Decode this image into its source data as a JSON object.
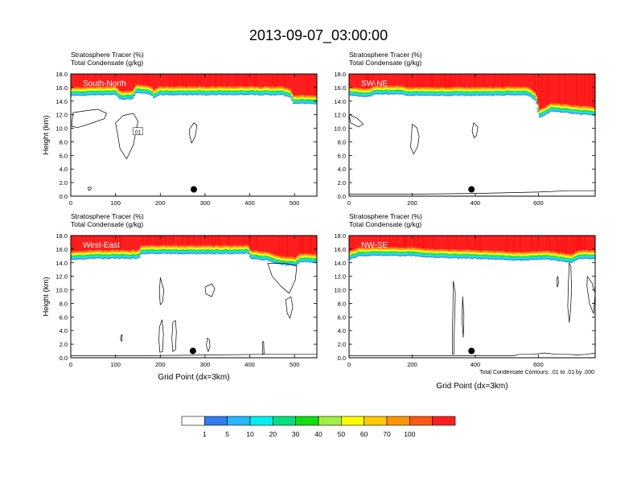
{
  "title": "2013-09-07_03:00:00",
  "footnote": "Total Condensate Contours: .01 to .01 by .000",
  "colorbar": {
    "colors": [
      "#ffffff",
      "#2f7ef0",
      "#27b8ff",
      "#00f0f0",
      "#00e080",
      "#10e010",
      "#a0f040",
      "#ffff00",
      "#ffc800",
      "#ff9600",
      "#ff5a14",
      "#ff1e1e"
    ],
    "labels": [
      "1",
      "5",
      "10",
      "20",
      "30",
      "40",
      "50",
      "60",
      "70",
      "100"
    ]
  },
  "chart_data": [
    {
      "type": "heatmap",
      "name": "South-North",
      "title_lines": [
        "Stratosphere Tracer   (%)",
        "Total Condensate   (g/kg)"
      ],
      "ylabel": "Height (km)",
      "xlabel": "",
      "xlim": [
        0,
        550
      ],
      "ylim": [
        0,
        18
      ],
      "x_ticks": [
        "0",
        "100",
        "200",
        "300",
        "400",
        "500"
      ],
      "y_ticks": [
        "0.0",
        "2.0",
        "4.0",
        "6.0",
        "8.0",
        "10.0",
        "12.0",
        "14.0",
        "16.0",
        "18.0"
      ],
      "tropopause": [
        [
          0,
          14.8
        ],
        [
          60,
          14.9
        ],
        [
          100,
          14.9
        ],
        [
          110,
          14.2
        ],
        [
          135,
          14.3
        ],
        [
          145,
          15.2
        ],
        [
          175,
          15.0
        ],
        [
          185,
          14.4
        ],
        [
          195,
          14.9
        ],
        [
          300,
          14.9
        ],
        [
          400,
          14.9
        ],
        [
          470,
          14.9
        ],
        [
          490,
          14.5
        ],
        [
          495,
          13.6
        ],
        [
          550,
          13.6
        ]
      ],
      "marker": {
        "x": 275,
        "y": 1.0
      },
      "contour_label": "01",
      "contours": [
        [
          [
            5,
            12.3
          ],
          [
            35,
            12.6
          ],
          [
            60,
            12.8
          ],
          [
            80,
            12.2
          ],
          [
            75,
            11.4
          ],
          [
            40,
            10.6
          ],
          [
            15,
            10.1
          ],
          [
            2,
            10.3
          ]
        ],
        [
          [
            100,
            10.8
          ],
          [
            118,
            11.9
          ],
          [
            140,
            12.2
          ],
          [
            150,
            11.0
          ],
          [
            146,
            9.6
          ],
          [
            140,
            7.6
          ],
          [
            125,
            5.5
          ],
          [
            110,
            7.0
          ],
          [
            105,
            9.0
          ]
        ],
        [
          [
            265,
            9.8
          ],
          [
            275,
            10.8
          ],
          [
            282,
            10.4
          ],
          [
            278,
            8.8
          ],
          [
            270,
            7.8
          ],
          [
            266,
            8.8
          ]
        ],
        [
          [
            38,
            1.2
          ],
          [
            43,
            1.4
          ],
          [
            46,
            1.1
          ],
          [
            41,
            0.8
          ]
        ]
      ]
    },
    {
      "type": "heatmap",
      "name": "SW-NE",
      "title_lines": [
        "Stratosphere Tracer   (%)",
        "Total Condensate   (g/kg)"
      ],
      "ylabel": "",
      "xlabel": "",
      "xlim": [
        0,
        780
      ],
      "ylim": [
        0,
        18
      ],
      "x_ticks": [
        "0",
        "200",
        "400",
        "600"
      ],
      "y_ticks": [
        "0.0",
        "2.0",
        "4.0",
        "6.0",
        "8.0",
        "10.0",
        "12.0",
        "14.0",
        "16.0",
        "18.0"
      ],
      "tropopause": [
        [
          0,
          14.8
        ],
        [
          60,
          14.6
        ],
        [
          80,
          15.0
        ],
        [
          160,
          15.0
        ],
        [
          190,
          14.8
        ],
        [
          300,
          14.8
        ],
        [
          450,
          14.8
        ],
        [
          560,
          14.9
        ],
        [
          590,
          14.0
        ],
        [
          600,
          11.5
        ],
        [
          640,
          12.5
        ],
        [
          780,
          11.8
        ]
      ],
      "marker": {
        "x": 388,
        "y": 1.0
      },
      "contour_label": "",
      "contours": [
        [
          [
            0,
            12.0
          ],
          [
            25,
            11.5
          ],
          [
            45,
            10.6
          ],
          [
            30,
            10.2
          ],
          [
            5,
            10.8
          ]
        ],
        [
          [
            200,
            10.6
          ],
          [
            215,
            10.1
          ],
          [
            222,
            8.8
          ],
          [
            218,
            7.4
          ],
          [
            205,
            6.2
          ],
          [
            195,
            7.2
          ],
          [
            198,
            9.0
          ]
        ],
        [
          [
            395,
            10.8
          ],
          [
            408,
            10.2
          ],
          [
            404,
            8.9
          ],
          [
            396,
            8.6
          ],
          [
            390,
            9.6
          ]
        ],
        [
          [
            0,
            0.3
          ],
          [
            200,
            0.3
          ],
          [
            400,
            0.4
          ],
          [
            600,
            0.6
          ],
          [
            700,
            0.8
          ],
          [
            780,
            0.8
          ]
        ]
      ]
    },
    {
      "type": "heatmap",
      "name": "West-East",
      "title_lines": [
        "Stratosphere Tracer   (%)",
        "Total Condensate   (g/kg)"
      ],
      "ylabel": "Height (km)",
      "xlabel": "Grid Point (dx=3km)",
      "xlim": [
        0,
        550
      ],
      "ylim": [
        0,
        18
      ],
      "x_ticks": [
        "0",
        "100",
        "200",
        "300",
        "400",
        "500"
      ],
      "y_ticks": [
        "0.0",
        "2.0",
        "4.0",
        "6.0",
        "8.0",
        "10.0",
        "12.0",
        "14.0",
        "16.0",
        "18.0"
      ],
      "tropopause": [
        [
          0,
          14.4
        ],
        [
          60,
          14.6
        ],
        [
          150,
          14.6
        ],
        [
          155,
          15.3
        ],
        [
          300,
          15.3
        ],
        [
          395,
          15.3
        ],
        [
          400,
          14.6
        ],
        [
          440,
          14.3
        ],
        [
          455,
          13.9
        ],
        [
          470,
          13.7
        ],
        [
          500,
          13.5
        ],
        [
          510,
          14.1
        ],
        [
          550,
          14.0
        ]
      ],
      "marker": {
        "x": 273,
        "y": 1.0
      },
      "contour_label": "",
      "contours": [
        [
          [
            440,
            13.9
          ],
          [
            450,
            12.0
          ],
          [
            470,
            10.5
          ],
          [
            488,
            9.5
          ],
          [
            502,
            11.5
          ],
          [
            505,
            13.6
          ],
          [
            480,
            13.9
          ]
        ],
        [
          [
            480,
            8.5
          ],
          [
            492,
            9.0
          ],
          [
            496,
            7.5
          ],
          [
            490,
            5.8
          ],
          [
            484,
            6.5
          ]
        ],
        [
          [
            200,
            11.8
          ],
          [
            208,
            10.0
          ],
          [
            205,
            8.2
          ],
          [
            200,
            7.8
          ],
          [
            198,
            9.6
          ]
        ],
        [
          [
            300,
            10.4
          ],
          [
            315,
            10.9
          ],
          [
            322,
            10.2
          ],
          [
            315,
            9.0
          ],
          [
            302,
            9.4
          ]
        ],
        [
          [
            198,
            4.5
          ],
          [
            204,
            5.6
          ],
          [
            207,
            3.5
          ],
          [
            205,
            0.9
          ],
          [
            199,
            0.8
          ],
          [
            197,
            2.6
          ]
        ],
        [
          [
            228,
            5.2
          ],
          [
            234,
            5.5
          ],
          [
            236,
            3.8
          ],
          [
            234,
            1.2
          ],
          [
            228,
            0.9
          ],
          [
            226,
            2.8
          ]
        ],
        [
          [
            305,
            2.9
          ],
          [
            310,
            2.6
          ],
          [
            311,
            1.6
          ],
          [
            307,
            0.9
          ],
          [
            303,
            1.8
          ]
        ],
        [
          [
            112,
            3.2
          ],
          [
            115,
            3.4
          ],
          [
            114,
            2.4
          ],
          [
            111,
            2.7
          ]
        ],
        [
          [
            428,
            2.3
          ],
          [
            431,
            2.4
          ],
          [
            432,
            0.6
          ],
          [
            429,
            0.5
          ]
        ],
        [
          [
            0,
            0.3
          ],
          [
            150,
            0.3
          ],
          [
            300,
            0.4
          ],
          [
            420,
            0.5
          ],
          [
            550,
            0.5
          ]
        ]
      ]
    },
    {
      "type": "heatmap",
      "name": "NW-SE",
      "title_lines": [
        "Stratosphere Tracer   (%)",
        "Total Condensate   (g/kg)"
      ],
      "ylabel": "",
      "xlabel": "Grid Point (dx=3km)",
      "xlim": [
        0,
        780
      ],
      "ylim": [
        0,
        18
      ],
      "x_ticks": [
        "0",
        "200",
        "400",
        "600"
      ],
      "y_ticks": [
        "0.0",
        "2.0",
        "4.0",
        "6.0",
        "8.0",
        "10.0",
        "12.0",
        "14.0",
        "16.0",
        "18.0"
      ],
      "tropopause": [
        [
          0,
          14.5
        ],
        [
          30,
          15.0
        ],
        [
          200,
          15.0
        ],
        [
          240,
          14.8
        ],
        [
          300,
          14.7
        ],
        [
          400,
          14.6
        ],
        [
          500,
          14.4
        ],
        [
          560,
          14.3
        ],
        [
          620,
          14.5
        ],
        [
          660,
          14.3
        ],
        [
          700,
          14.0
        ],
        [
          730,
          14.6
        ],
        [
          780,
          14.5
        ]
      ],
      "marker": {
        "x": 388,
        "y": 1.0
      },
      "contour_label": "",
      "contours": [
        [
          [
            330,
            11.3
          ],
          [
            337,
            9.5
          ],
          [
            335,
            6.5
          ],
          [
            333,
            3.0
          ],
          [
            332,
            0.5
          ],
          [
            328,
            0.5
          ],
          [
            327,
            3.0
          ],
          [
            329,
            7.0
          ]
        ],
        [
          [
            360,
            9.0
          ],
          [
            364,
            6.0
          ],
          [
            362,
            3.0
          ],
          [
            358,
            5.5
          ]
        ],
        [
          [
            658,
            11.6
          ],
          [
            662,
            12.0
          ],
          [
            664,
            11.0
          ],
          [
            660,
            10.4
          ]
        ],
        [
          [
            698,
            14.0
          ],
          [
            703,
            13.5
          ],
          [
            705,
            10.0
          ],
          [
            702,
            7.0
          ],
          [
            698,
            5.2
          ],
          [
            693,
            7.5
          ],
          [
            695,
            11.0
          ]
        ],
        [
          [
            755,
            12.0
          ],
          [
            770,
            11.0
          ],
          [
            780,
            9.5
          ],
          [
            775,
            6.5
          ],
          [
            762,
            8.0
          ],
          [
            754,
            10.5
          ]
        ],
        [
          [
            520,
            0.3
          ],
          [
            540,
            0.5
          ],
          [
            580,
            0.5
          ],
          [
            620,
            0.7
          ],
          [
            660,
            0.5
          ],
          [
            700,
            0.5
          ],
          [
            720,
            0.4
          ],
          [
            750,
            0.5
          ],
          [
            780,
            0.7
          ]
        ],
        [
          [
            520,
            0.3
          ],
          [
            200,
            0.3
          ],
          [
            0,
            0.3
          ]
        ]
      ]
    }
  ]
}
